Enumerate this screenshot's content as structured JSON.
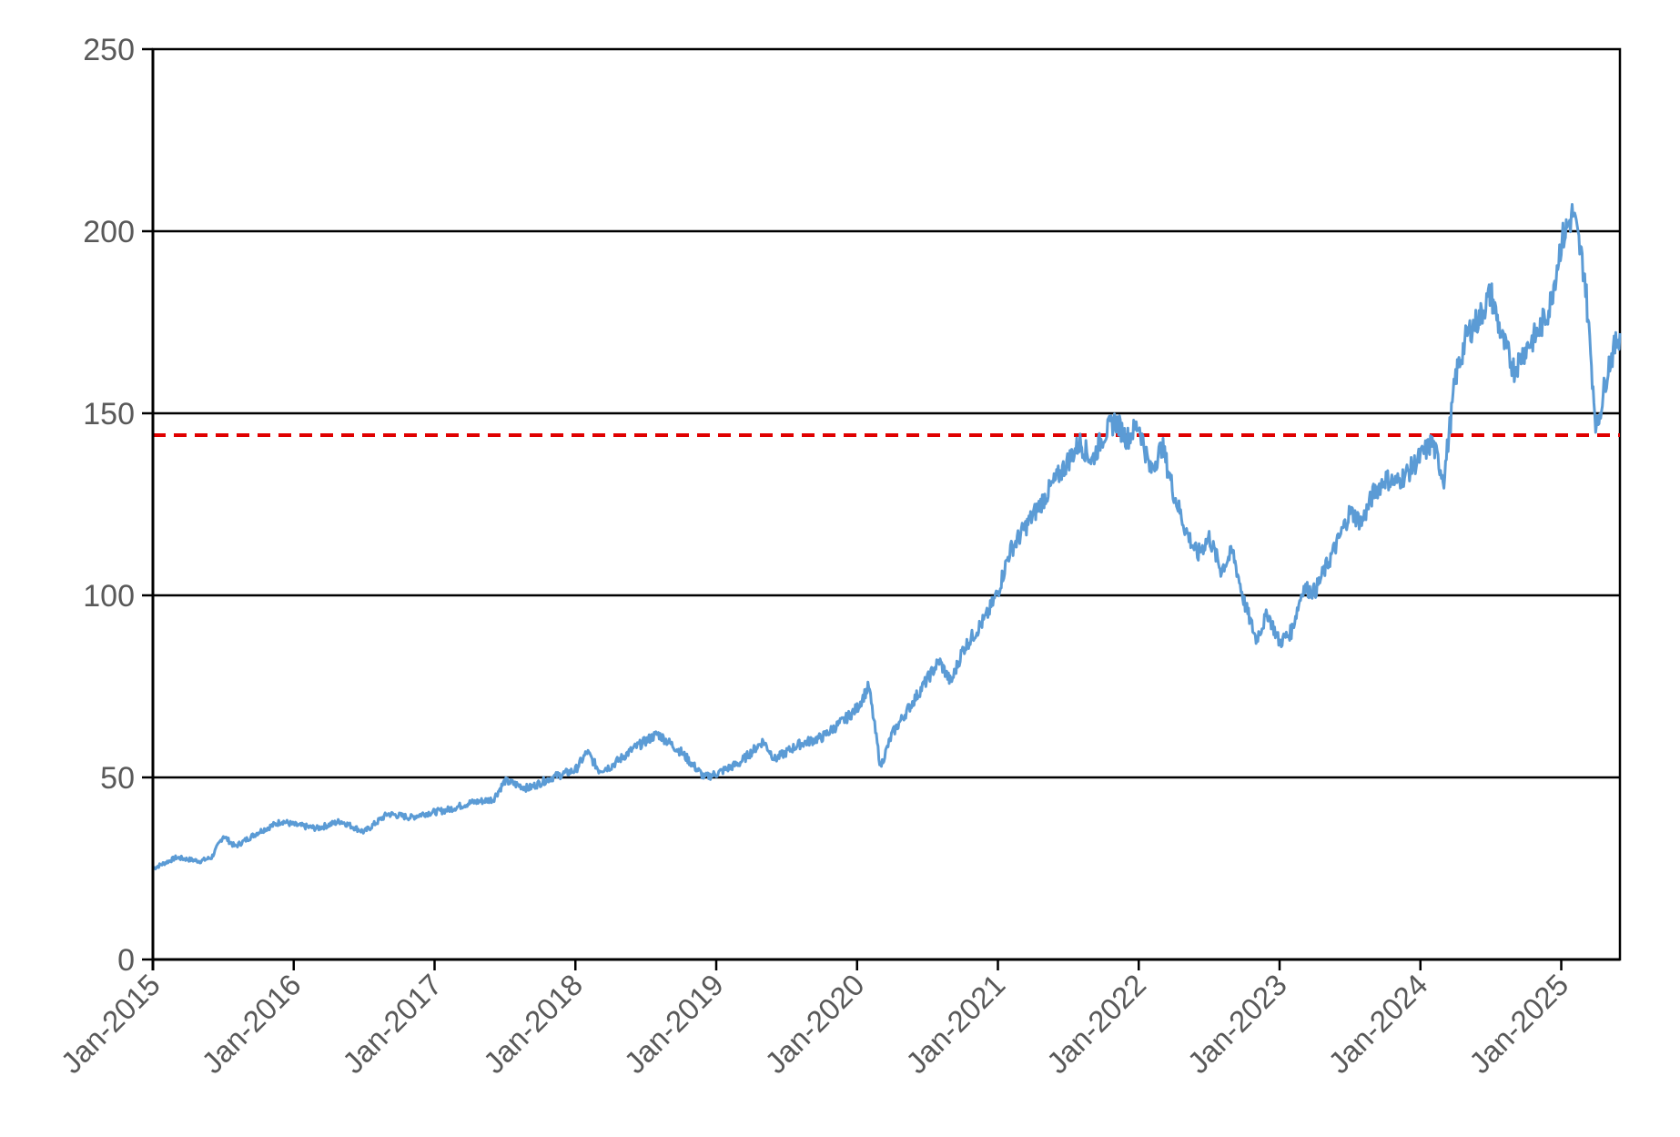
{
  "chart_data": {
    "type": "line",
    "title": "",
    "xlabel": "",
    "ylabel": "",
    "ylim": [
      0,
      250
    ],
    "yticks": [
      "0",
      "50",
      "100",
      "150",
      "200",
      "250"
    ],
    "xlim": [
      "2015-01",
      "2025-06"
    ],
    "xtick_labels": [
      "Jan-2015",
      "Jan-2016",
      "Jan-2017",
      "Jan-2018",
      "Jan-2019",
      "Jan-2020",
      "Jan-2021",
      "Jan-2022",
      "Jan-2023",
      "Jan-2024",
      "Jan-2025"
    ],
    "grid": "horizontal",
    "colors": {
      "series": "#5b9bd5",
      "reference": "#e00000",
      "grid": "#000000"
    },
    "reference_line": {
      "value": 144,
      "style": "dashed"
    },
    "series": [
      {
        "x": [
          "2015-01",
          "2015-03",
          "2015-05",
          "2015-06",
          "2015-07",
          "2015-08",
          "2015-10",
          "2015-12",
          "2016-01",
          "2016-03",
          "2016-05",
          "2016-07",
          "2016-09",
          "2016-11",
          "2016-12",
          "2017-02",
          "2017-04",
          "2017-06",
          "2017-07",
          "2017-09",
          "2017-11",
          "2018-01",
          "2018-02",
          "2018-03",
          "2018-04",
          "2018-06",
          "2018-08",
          "2018-10",
          "2018-12",
          "2019-01",
          "2019-03",
          "2019-05",
          "2019-06",
          "2019-08",
          "2019-10",
          "2019-12",
          "2020-01",
          "2020-02",
          "2020-03",
          "2020-04",
          "2020-06",
          "2020-08",
          "2020-09",
          "2020-10",
          "2020-12",
          "2021-01",
          "2021-02",
          "2021-04",
          "2021-06",
          "2021-08",
          "2021-09",
          "2021-10",
          "2021-11",
          "2021-12",
          "2022-01",
          "2022-02",
          "2022-03",
          "2022-04",
          "2022-05",
          "2022-06",
          "2022-07",
          "2022-08",
          "2022-09",
          "2022-10",
          "2022-11",
          "2022-12",
          "2023-01",
          "2023-02",
          "2023-03",
          "2023-04",
          "2023-06",
          "2023-07",
          "2023-08",
          "2023-09",
          "2023-10",
          "2023-11",
          "2023-12",
          "2024-01",
          "2024-02",
          "2024-03",
          "2024-04",
          "2024-05",
          "2024-06",
          "2024-07",
          "2024-08",
          "2024-09",
          "2024-10",
          "2024-11",
          "2024-12",
          "2025-01",
          "2025-02",
          "2025-03",
          "2025-04",
          "2025-05",
          "2025-06"
        ],
        "y": [
          25,
          28,
          27,
          28,
          34,
          31,
          35,
          38,
          37,
          36,
          38,
          35,
          40,
          39,
          40,
          41,
          43,
          44,
          49,
          47,
          50,
          52,
          57,
          52,
          53,
          58,
          62,
          57,
          50,
          51,
          54,
          60,
          55,
          59,
          61,
          66,
          69,
          75,
          53,
          62,
          72,
          82,
          76,
          85,
          94,
          101,
          112,
          122,
          132,
          142,
          137,
          144,
          148,
          143,
          147,
          134,
          141,
          128,
          118,
          111,
          116,
          107,
          112,
          98,
          88,
          95,
          87,
          90,
          102,
          101,
          115,
          123,
          120,
          128,
          132,
          131,
          134,
          138,
          142,
          132,
          160,
          172,
          176,
          183,
          170,
          162,
          168,
          172,
          179,
          197,
          205,
          188,
          145,
          163,
          172
        ]
      }
    ]
  }
}
